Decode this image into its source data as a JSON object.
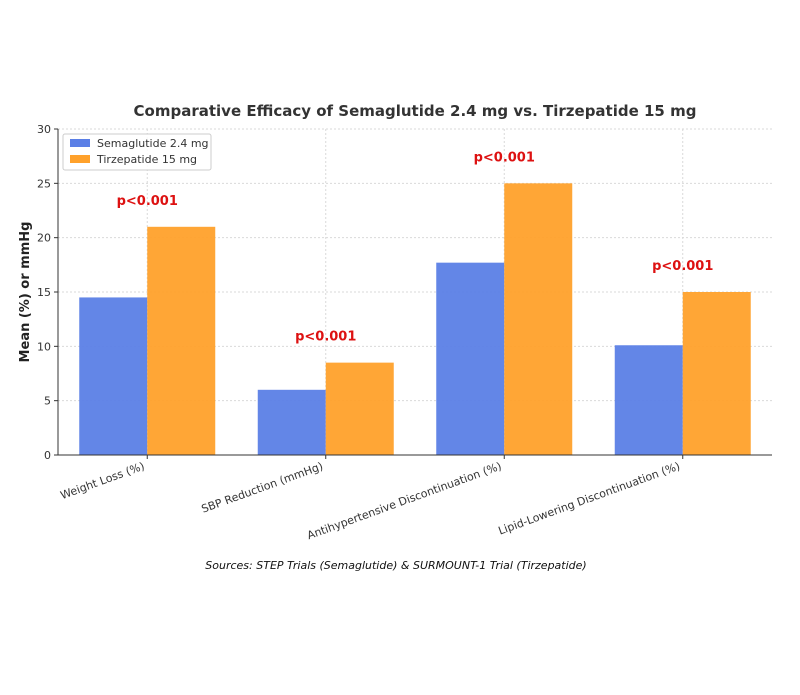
{
  "chart_data": {
    "type": "bar",
    "title": "Comparative Efficacy of Semaglutide 2.4 mg vs. Tirzepatide 15 mg",
    "xlabel": "",
    "ylabel": "Mean (%) or mmHg",
    "ylim": [
      0,
      30
    ],
    "yticks": [
      "0",
      "5",
      "10",
      "15",
      "20",
      "25",
      "30"
    ],
    "grid": true,
    "legend_position": "top-left",
    "categories": [
      "Weight Loss (%)",
      "SBP Reduction (mmHg)",
      "Antihypertensive Discontinuation (%)",
      "Lipid-Lowering Discontinuation (%)"
    ],
    "series": [
      {
        "name": "Semaglutide 2.4 mg",
        "color": "#5b7fe6",
        "values": [
          14.5,
          6.0,
          17.7,
          10.1
        ]
      },
      {
        "name": "Tirzepatide 15 mg",
        "color": "#ffa12b",
        "values": [
          21.0,
          8.5,
          25.0,
          15.0
        ]
      }
    ],
    "annotations": [
      "p<0.001",
      "p<0.001",
      "p<0.001",
      "p<0.001"
    ],
    "annotation_color": "#dd1111",
    "source": "Sources: STEP Trials (Semaglutide) & SURMOUNT-1 Trial (Tirzepatide)"
  }
}
